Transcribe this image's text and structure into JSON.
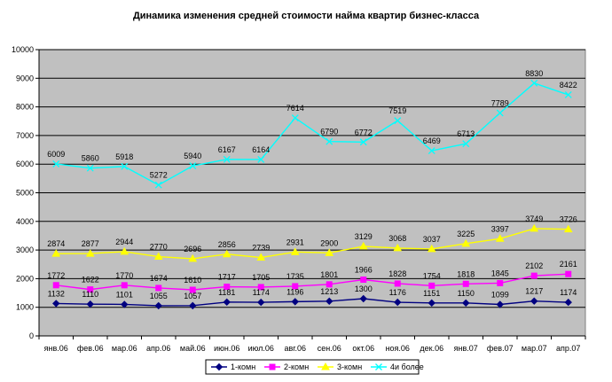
{
  "chart_data": {
    "type": "line",
    "title": "Динамика изменения средней стоимости найма квартир бизнес-класса",
    "xlabel": "",
    "ylabel": "",
    "ylim": [
      0,
      10000
    ],
    "yticks": [
      0,
      1000,
      2000,
      3000,
      4000,
      5000,
      6000,
      7000,
      8000,
      9000,
      10000
    ],
    "grid": true,
    "legend_position": "bottom",
    "plot_background": "#c0c0c0",
    "categories": [
      "янв.06",
      "фев.06",
      "мар.06",
      "апр.06",
      "май.06",
      "июн.06",
      "июл.06",
      "авг.06",
      "сен.06",
      "окт.06",
      "ноя.06",
      "дек.06",
      "янв.07",
      "фев.07",
      "мар.07",
      "апр.07"
    ],
    "series": [
      {
        "name": "1-комн",
        "color": "#000080",
        "marker": "diamond",
        "values": [
          1132,
          1110,
          1101,
          1055,
          1057,
          1181,
          1174,
          1196,
          1213,
          1300,
          1176,
          1151,
          1150,
          1099,
          1217,
          1174
        ]
      },
      {
        "name": "2-комн",
        "color": "#ff00ff",
        "marker": "square",
        "values": [
          1772,
          1622,
          1770,
          1674,
          1610,
          1717,
          1705,
          1735,
          1801,
          1966,
          1828,
          1754,
          1818,
          1845,
          2102,
          2161
        ]
      },
      {
        "name": "3-комн",
        "color": "#ffff00",
        "marker": "triangle",
        "values": [
          2874,
          2877,
          2944,
          2770,
          2696,
          2856,
          2739,
          2931,
          2900,
          3129,
          3068,
          3037,
          3225,
          3397,
          3749,
          3726
        ]
      },
      {
        "name": "4и более",
        "color": "#00ffff",
        "marker": "x",
        "values": [
          6009,
          5860,
          5918,
          5272,
          5940,
          6167,
          6164,
          7614,
          6790,
          6772,
          7519,
          6469,
          6713,
          7789,
          8830,
          8422
        ]
      }
    ]
  }
}
